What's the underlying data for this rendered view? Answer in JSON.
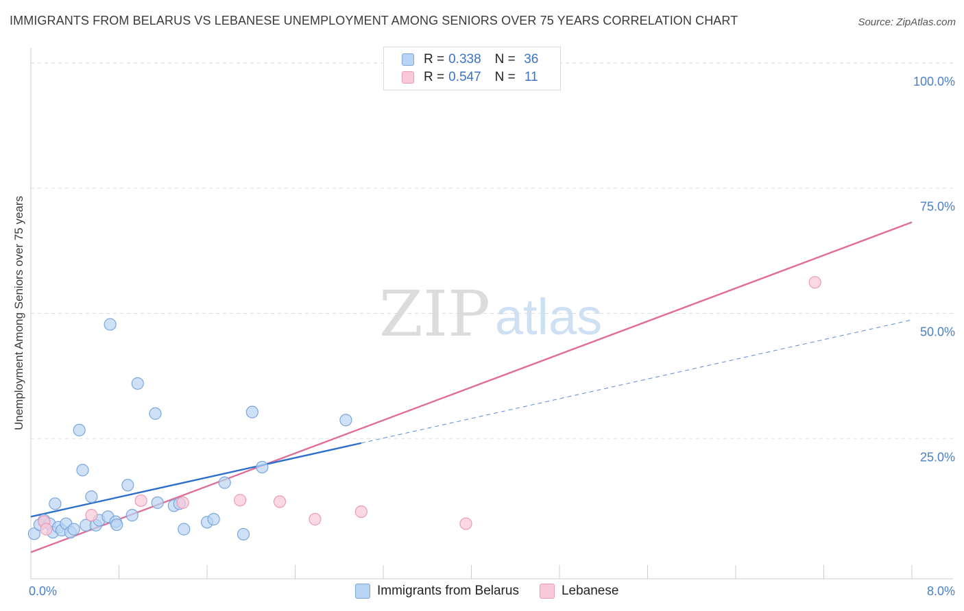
{
  "title": "IMMIGRANTS FROM BELARUS VS LEBANESE UNEMPLOYMENT AMONG SENIORS OVER 75 YEARS CORRELATION CHART",
  "source": "Source: ZipAtlas.com",
  "watermark": {
    "zip": "ZIP",
    "atlas": "atlas"
  },
  "legend": {
    "r_label": "R =",
    "n_label": "N =",
    "series": [
      {
        "name": "Immigrants from Belarus",
        "r": "0.338",
        "n": "36"
      },
      {
        "name": "Lebanese",
        "r": "0.547",
        "n": "11"
      }
    ]
  },
  "colors": {
    "belarus_fill": "#b9d4f2",
    "belarus_stroke": "#7aa6dd",
    "belarus_line": "#2c6fca",
    "lebanese_fill": "#f9c9d8",
    "lebanese_stroke": "#ec9ab5",
    "lebanese_line": "#e06c98",
    "tick_text": "#4a7fc8",
    "grid": "#dddddd"
  },
  "chart_data": {
    "type": "scatter",
    "title": "IMMIGRANTS FROM BELARUS VS LEBANESE UNEMPLOYMENT AMONG SENIORS OVER 75 YEARS CORRELATION CHART",
    "xlabel": "",
    "ylabel": "Unemployment Among Seniors over 75 years",
    "xlim": [
      0,
      8
    ],
    "ylim": [
      -3,
      103
    ],
    "x_tick_labels": [
      {
        "value": 0,
        "label": "0.0%"
      },
      {
        "value": 8,
        "label": "8.0%"
      }
    ],
    "y_tick_labels": [
      {
        "value": 25,
        "label": "25.0%"
      },
      {
        "value": 50,
        "label": "50.0%"
      },
      {
        "value": 75,
        "label": "75.0%"
      },
      {
        "value": 100,
        "label": "100.0%"
      }
    ],
    "grid": true,
    "series": [
      {
        "name": "Immigrants from Belarus",
        "points": [
          {
            "x": 0.03,
            "y": 6.0
          },
          {
            "x": 0.08,
            "y": 7.8
          },
          {
            "x": 0.12,
            "y": 8.7
          },
          {
            "x": 0.17,
            "y": 8.0
          },
          {
            "x": 0.2,
            "y": 6.3
          },
          {
            "x": 0.22,
            "y": 12.0
          },
          {
            "x": 0.25,
            "y": 7.3
          },
          {
            "x": 0.28,
            "y": 6.7
          },
          {
            "x": 0.32,
            "y": 8.0
          },
          {
            "x": 0.36,
            "y": 6.3
          },
          {
            "x": 0.39,
            "y": 6.9
          },
          {
            "x": 0.44,
            "y": 26.7
          },
          {
            "x": 0.47,
            "y": 18.7
          },
          {
            "x": 0.5,
            "y": 7.7
          },
          {
            "x": 0.55,
            "y": 13.4
          },
          {
            "x": 0.59,
            "y": 7.7
          },
          {
            "x": 0.62,
            "y": 8.7
          },
          {
            "x": 0.7,
            "y": 9.4
          },
          {
            "x": 0.72,
            "y": 47.8
          },
          {
            "x": 0.77,
            "y": 8.4
          },
          {
            "x": 0.78,
            "y": 7.8
          },
          {
            "x": 0.88,
            "y": 15.7
          },
          {
            "x": 0.92,
            "y": 9.7
          },
          {
            "x": 0.97,
            "y": 36.0
          },
          {
            "x": 1.13,
            "y": 30.0
          },
          {
            "x": 1.15,
            "y": 12.2
          },
          {
            "x": 1.3,
            "y": 11.6
          },
          {
            "x": 1.35,
            "y": 12.0
          },
          {
            "x": 1.39,
            "y": 6.9
          },
          {
            "x": 1.6,
            "y": 8.3
          },
          {
            "x": 1.66,
            "y": 8.9
          },
          {
            "x": 1.76,
            "y": 16.2
          },
          {
            "x": 1.93,
            "y": 5.9
          },
          {
            "x": 2.01,
            "y": 30.3
          },
          {
            "x": 2.1,
            "y": 19.3
          },
          {
            "x": 2.86,
            "y": 28.7
          }
        ],
        "trend": {
          "x": [
            0,
            3.0
          ],
          "y": [
            9.4,
            24.1
          ]
        },
        "trend_extension": {
          "x": [
            3.0,
            8.0
          ],
          "y": [
            24.1,
            48.7
          ]
        }
      },
      {
        "name": "Lebanese",
        "points": [
          {
            "x": 0.12,
            "y": 8.4
          },
          {
            "x": 0.14,
            "y": 6.9
          },
          {
            "x": 0.55,
            "y": 9.7
          },
          {
            "x": 1.0,
            "y": 12.6
          },
          {
            "x": 1.38,
            "y": 12.2
          },
          {
            "x": 1.9,
            "y": 12.7
          },
          {
            "x": 2.26,
            "y": 12.4
          },
          {
            "x": 2.58,
            "y": 8.9
          },
          {
            "x": 3.0,
            "y": 10.4
          },
          {
            "x": 3.95,
            "y": 8.0
          },
          {
            "x": 7.12,
            "y": 56.2
          }
        ],
        "trend": {
          "x": [
            0,
            8.0
          ],
          "y": [
            2.3,
            68.2
          ]
        }
      }
    ]
  }
}
